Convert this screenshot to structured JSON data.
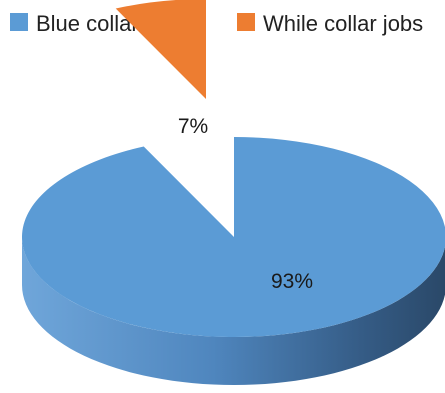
{
  "chart_data": {
    "type": "pie",
    "style": "3d-exploded",
    "title": "",
    "categories": [
      "Blue collar jobs",
      "While collar jobs"
    ],
    "values": [
      93,
      7
    ],
    "labels": [
      "93%",
      "7%"
    ],
    "colors": [
      "#5B9BD5",
      "#ED7D31"
    ],
    "legend_position": "top"
  }
}
